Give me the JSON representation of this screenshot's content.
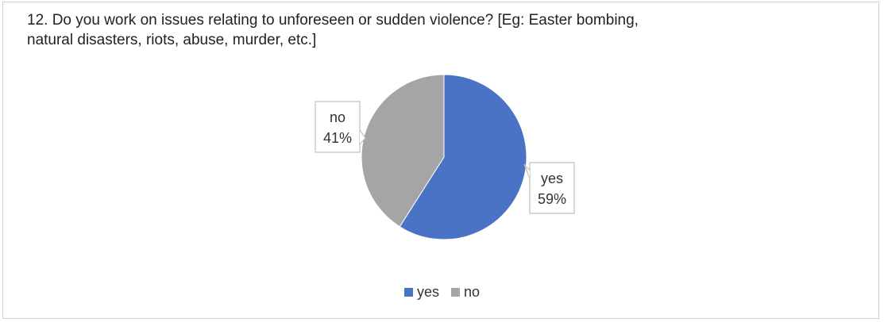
{
  "question": {
    "line1": "12. Do you work on issues relating to unforeseen or sudden violence? [Eg: Easter bombing,",
    "line2": "natural disasters, riots, abuse, murder, etc.]"
  },
  "chart_data": {
    "type": "pie",
    "title": "12. Do you work on issues relating to unforeseen or sudden violence? [Eg: Easter bombing, natural disasters, riots, abuse, murder, etc.]",
    "categories": [
      "yes",
      "no"
    ],
    "values": [
      59,
      41
    ],
    "labels": [
      "59%",
      "41%"
    ],
    "colors": [
      "#4a73c6",
      "#a5a5a5"
    ],
    "legend": "bottom"
  }
}
